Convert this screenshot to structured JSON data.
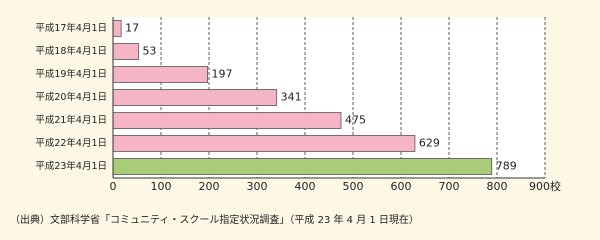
{
  "chart_data": {
    "type": "bar",
    "orientation": "horizontal",
    "categories": [
      "平成17年4月1日",
      "平成18年4月1日",
      "平成19年4月1日",
      "平成20年4月1日",
      "平成21年4月1日",
      "平成22年4月1日",
      "平成23年4月1日"
    ],
    "values": [
      17,
      53,
      197,
      341,
      475,
      629,
      789
    ],
    "colors": [
      "#f6b5c4",
      "#f6b5c4",
      "#f6b5c4",
      "#f6b5c4",
      "#f6b5c4",
      "#f6b5c4",
      "#a9cc79"
    ],
    "xlim": [
      0,
      900
    ],
    "xticks": [
      0,
      100,
      200,
      300,
      400,
      500,
      600,
      700,
      800,
      {
        "value": 900,
        "label": "900校"
      }
    ],
    "grid": true,
    "note": "（出典）文部科学省「コミュニティ・スクール指定状況調査」（平成 23 年 4 月 1 日現在）"
  }
}
